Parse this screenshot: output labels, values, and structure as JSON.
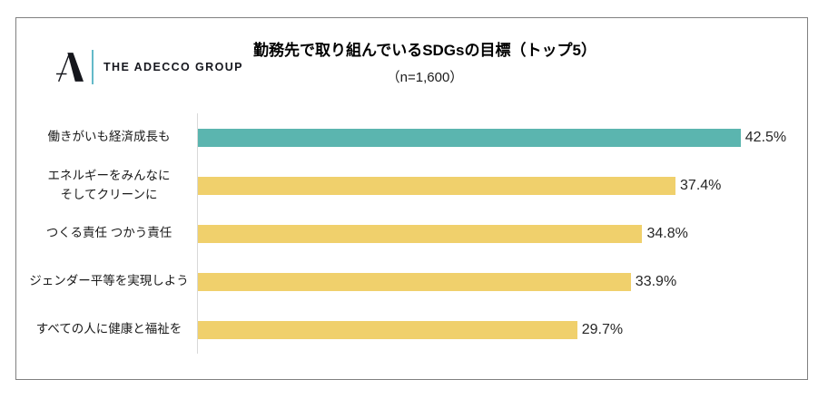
{
  "logo": {
    "brand": "THE ADECCO GROUP",
    "divider_color": "#63BAC9",
    "mark_color": "#15161c"
  },
  "chart_data": {
    "type": "bar",
    "orientation": "horizontal",
    "title": "勤務先で取り組んでいるSDGsの目標（トップ5）",
    "subtitle": "（n=1,600）",
    "categories": [
      "働きがいも経済成長も",
      "エネルギーをみんなに\nそしてクリーンに",
      "つくる責任 つかう責任",
      "ジェンダー平等を実現しよう",
      "すべての人に健康と福祉を"
    ],
    "values": [
      42.5,
      37.4,
      34.8,
      33.9,
      29.7
    ],
    "value_labels": [
      "42.5%",
      "37.4%",
      "34.8%",
      "33.9%",
      "29.7%"
    ],
    "bar_colors": [
      "#5BB5AF",
      "#F0D06C",
      "#F0D06C",
      "#F0D06C",
      "#F0D06C"
    ],
    "xlim": [
      0,
      46
    ],
    "grid": false,
    "legend": false,
    "axis_line_color": "#d9d9d9",
    "frame_border_color": "#808080"
  }
}
